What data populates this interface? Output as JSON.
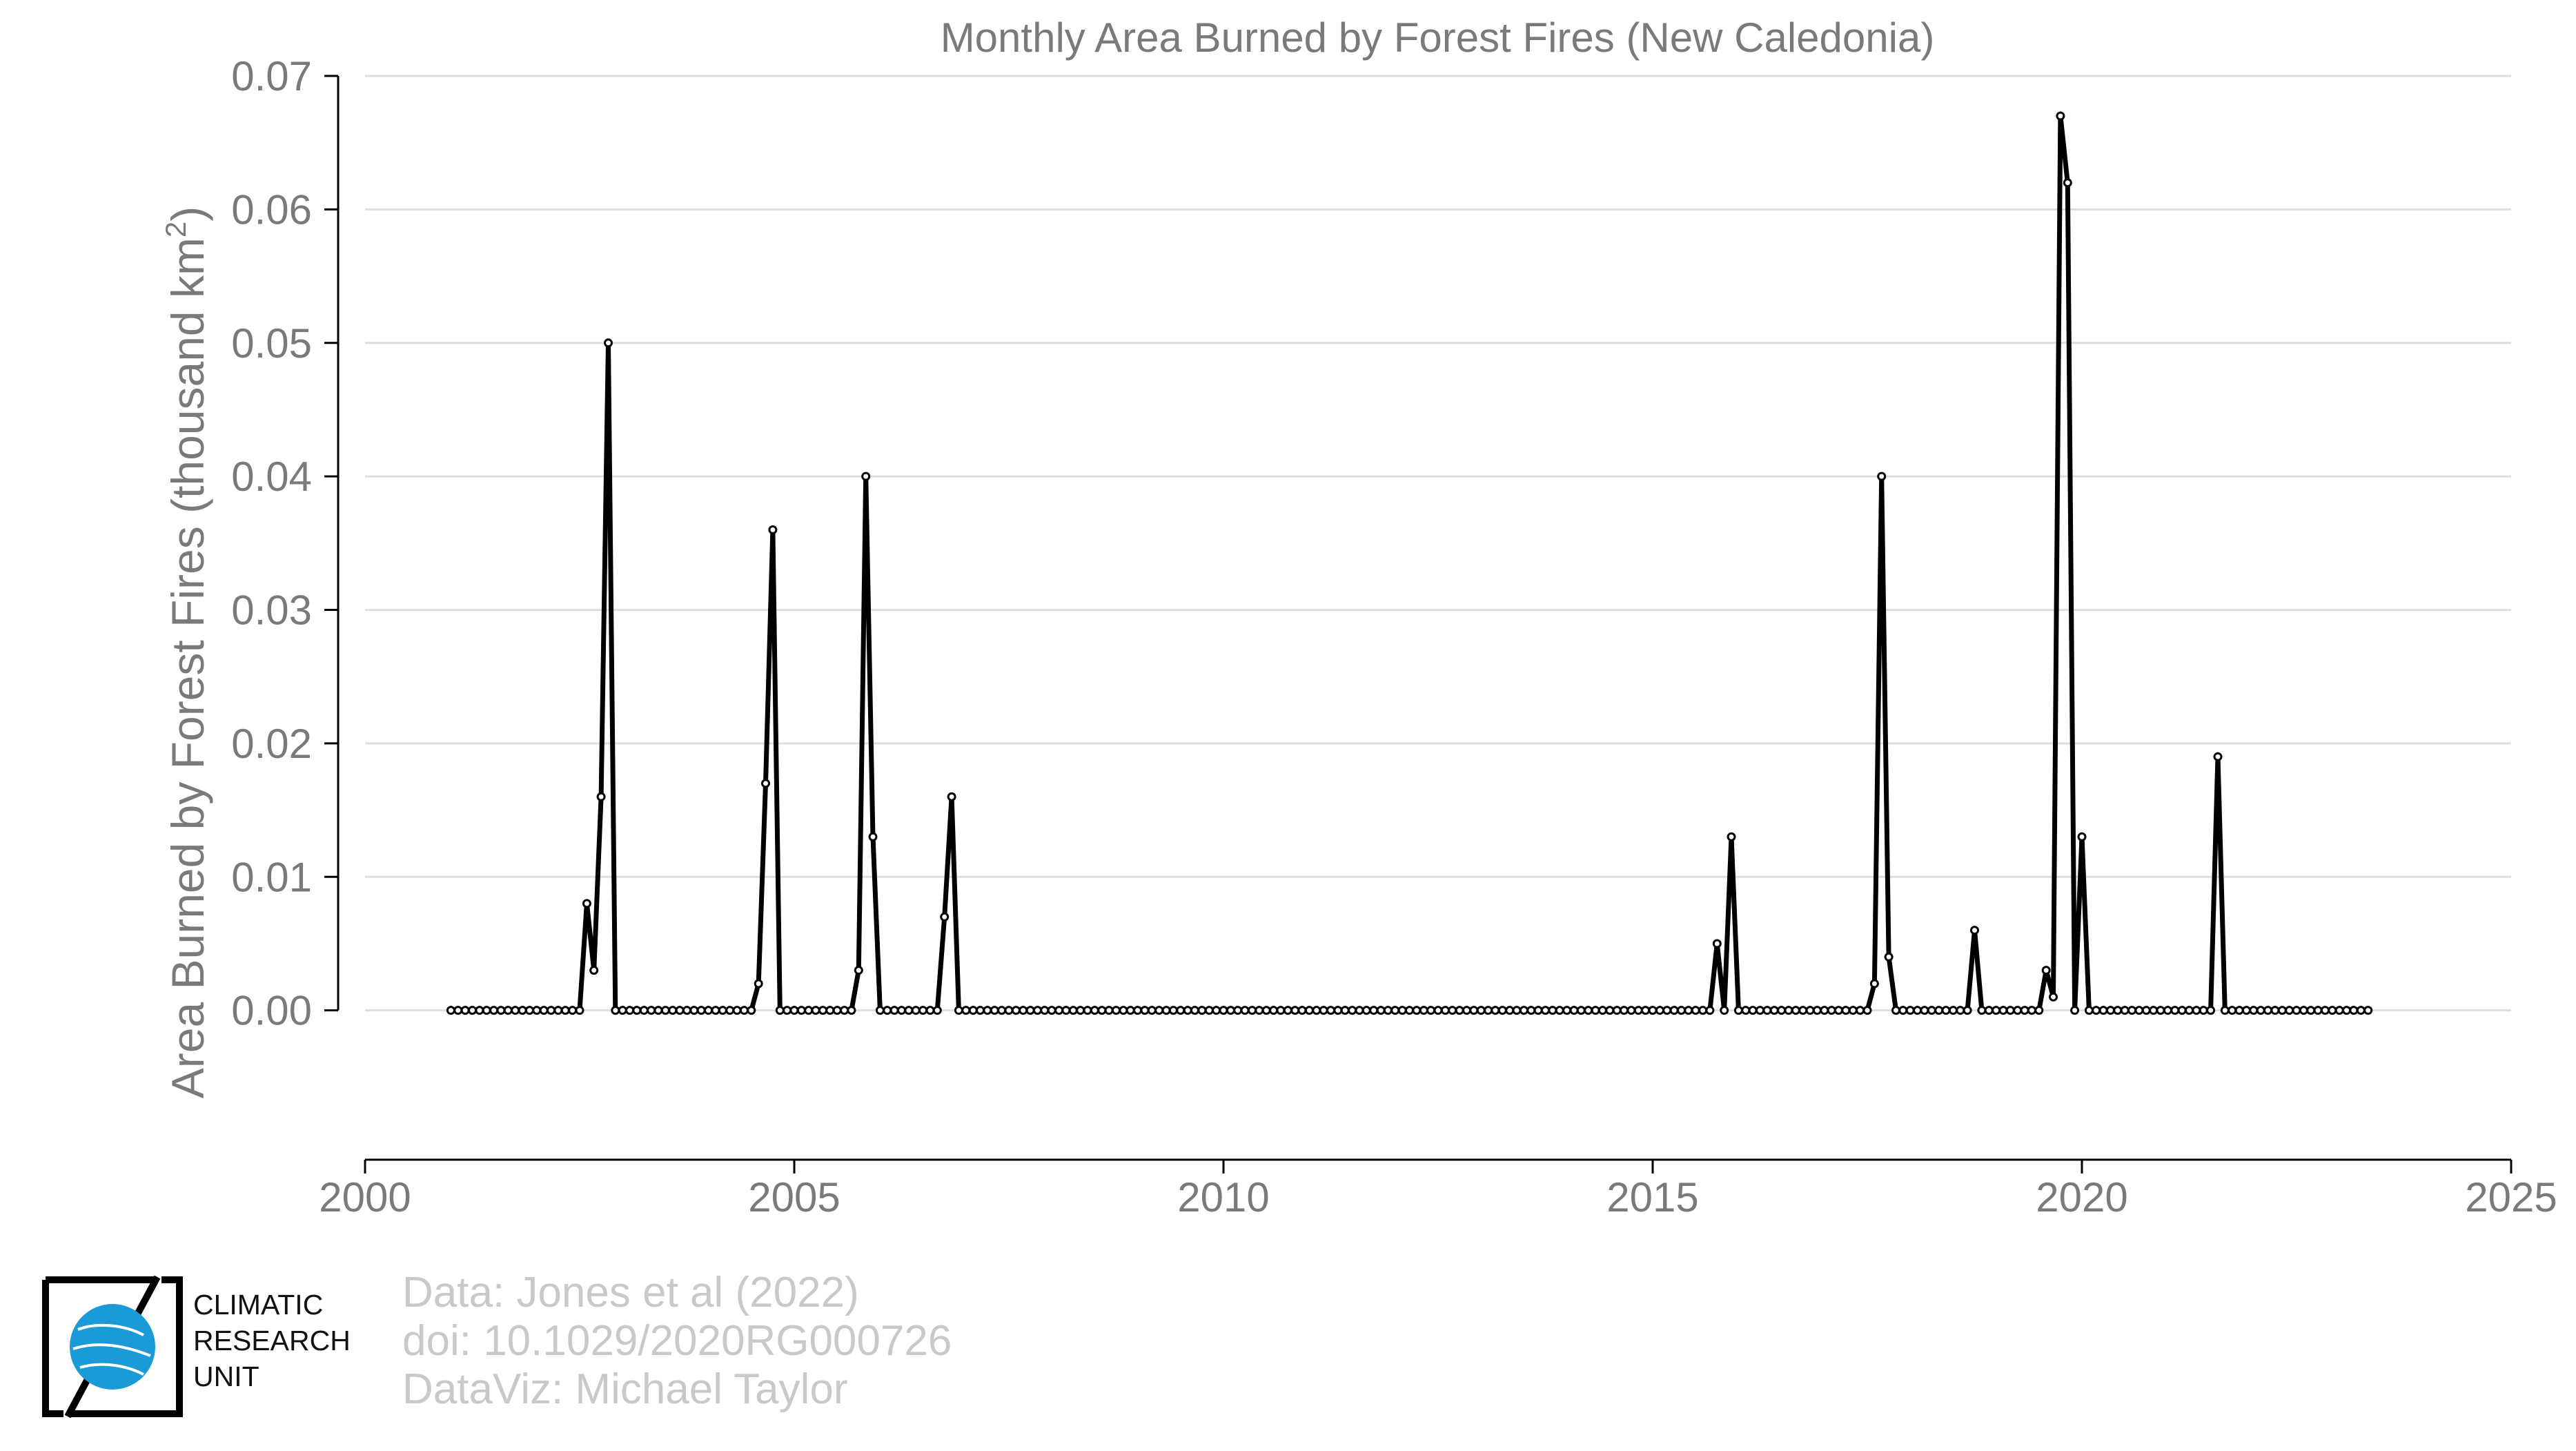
{
  "chart_data": {
    "type": "line",
    "title": "Monthly Area Burned by Forest Fires (New Caledonia)",
    "ylabel_main": "Area Burned by Forest Fires (thousand km",
    "ylabel_sup": "2",
    "ylabel_close": ")",
    "xlabel": "",
    "xlim": [
      2000,
      2025
    ],
    "ylim": [
      -0.0055,
      0.07
    ],
    "x_ticks": [
      "2000",
      "2005",
      "2010",
      "2015",
      "2020",
      "2025"
    ],
    "y_ticks": [
      "0.00",
      "0.01",
      "0.02",
      "0.03",
      "0.04",
      "0.05",
      "0.06",
      "0.07"
    ],
    "grid": "horizontal",
    "series_color": "#000000",
    "x_start": "2001-01",
    "x_end": "2023-05",
    "frequency": "monthly",
    "baseline_value": 0,
    "nonzero_points": [
      {
        "month": "2002-08",
        "value": 0.008
      },
      {
        "month": "2002-09",
        "value": 0.003
      },
      {
        "month": "2002-10",
        "value": 0.016
      },
      {
        "month": "2002-11",
        "value": 0.05
      },
      {
        "month": "2004-08",
        "value": 0.002
      },
      {
        "month": "2004-09",
        "value": 0.017
      },
      {
        "month": "2004-10",
        "value": 0.036
      },
      {
        "month": "2005-10",
        "value": 0.003
      },
      {
        "month": "2005-11",
        "value": 0.04
      },
      {
        "month": "2005-12",
        "value": 0.013
      },
      {
        "month": "2006-10",
        "value": 0.007
      },
      {
        "month": "2006-11",
        "value": 0.016
      },
      {
        "month": "2015-10",
        "value": 0.005
      },
      {
        "month": "2015-12",
        "value": 0.013
      },
      {
        "month": "2017-08",
        "value": 0.002
      },
      {
        "month": "2017-09",
        "value": 0.04
      },
      {
        "month": "2017-10",
        "value": 0.004
      },
      {
        "month": "2018-10",
        "value": 0.006
      },
      {
        "month": "2019-08",
        "value": 0.003
      },
      {
        "month": "2019-09",
        "value": 0.001
      },
      {
        "month": "2019-10",
        "value": 0.067
      },
      {
        "month": "2019-11",
        "value": 0.062
      },
      {
        "month": "2020-01",
        "value": 0.013
      },
      {
        "month": "2021-08",
        "value": 0.019
      }
    ]
  },
  "logo": {
    "icon": "globe-icon",
    "accent": "#1a9ad6",
    "line1": "CLIMATIC",
    "line2": "RESEARCH",
    "line3": "UNIT"
  },
  "credits": {
    "line1": "Data: Jones et al (2022)",
    "line2": "doi: 10.1029/2020RG000726",
    "line3": "DataViz: Michael Taylor"
  }
}
